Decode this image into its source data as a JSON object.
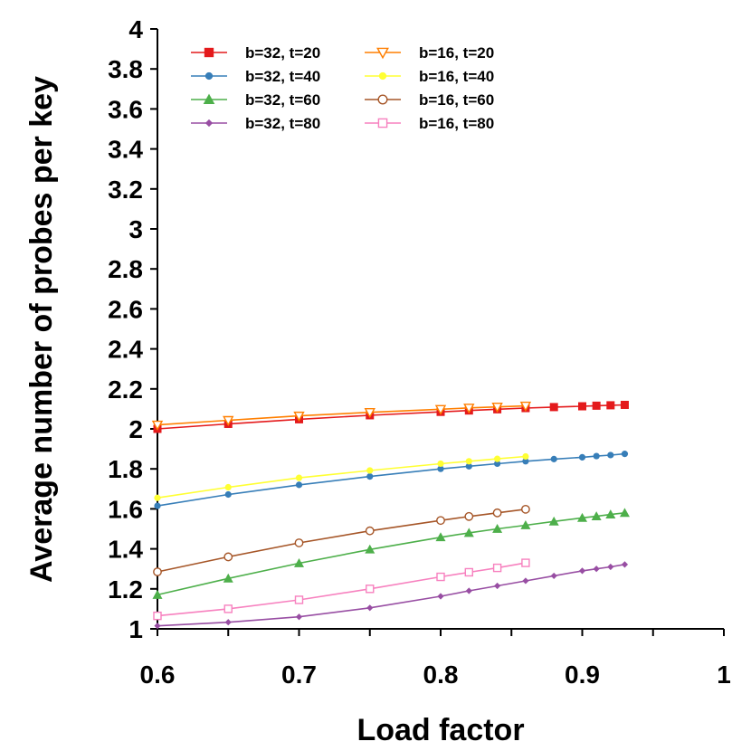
{
  "chart_data": {
    "type": "line",
    "title": "",
    "xlabel": "Load factor",
    "ylabel": "Average number of probes per key",
    "xlim": [
      0.6,
      1.0
    ],
    "ylim": [
      1.0,
      4.0
    ],
    "xticks": [
      "0.6",
      "0.7",
      "0.8",
      "0.9",
      "1"
    ],
    "xtick_values": [
      0.6,
      0.65,
      0.7,
      0.75,
      0.8,
      0.85,
      0.9,
      0.95,
      1.0
    ],
    "yticks": [
      "1",
      "1.2",
      "1.4",
      "1.6",
      "1.8",
      "2",
      "2.2",
      "2.4",
      "2.6",
      "2.8",
      "3",
      "3.2",
      "3.4",
      "3.6",
      "3.8",
      "4"
    ],
    "legend_position": "top-left",
    "series": [
      {
        "name": "b=32, t=20",
        "color": "#e41a1c",
        "marker": "square-filled",
        "x": [
          0.6,
          0.65,
          0.7,
          0.75,
          0.8,
          0.82,
          0.84,
          0.86,
          0.88,
          0.9,
          0.91,
          0.92,
          0.93
        ],
        "y": [
          2.0,
          2.025,
          2.048,
          2.068,
          2.085,
          2.092,
          2.098,
          2.104,
          2.109,
          2.113,
          2.116,
          2.118,
          2.12
        ]
      },
      {
        "name": "b=32, t=40",
        "color": "#377eb8",
        "marker": "circle-filled",
        "x": [
          0.6,
          0.65,
          0.7,
          0.75,
          0.8,
          0.82,
          0.84,
          0.86,
          0.88,
          0.9,
          0.91,
          0.92,
          0.93
        ],
        "y": [
          1.615,
          1.672,
          1.72,
          1.762,
          1.8,
          1.813,
          1.826,
          1.838,
          1.849,
          1.858,
          1.864,
          1.869,
          1.875
        ]
      },
      {
        "name": "b=32, t=60",
        "color": "#4daf4a",
        "marker": "triangle-filled",
        "x": [
          0.6,
          0.65,
          0.7,
          0.75,
          0.8,
          0.82,
          0.84,
          0.86,
          0.88,
          0.9,
          0.91,
          0.92,
          0.93
        ],
        "y": [
          1.17,
          1.252,
          1.328,
          1.397,
          1.458,
          1.48,
          1.5,
          1.518,
          1.537,
          1.555,
          1.563,
          1.572,
          1.58
        ]
      },
      {
        "name": "b=32, t=80",
        "color": "#984ea3",
        "marker": "diamond-filled",
        "x": [
          0.6,
          0.65,
          0.7,
          0.75,
          0.8,
          0.82,
          0.84,
          0.86,
          0.88,
          0.9,
          0.91,
          0.92,
          0.93
        ],
        "y": [
          1.015,
          1.033,
          1.06,
          1.105,
          1.163,
          1.19,
          1.215,
          1.24,
          1.265,
          1.29,
          1.3,
          1.31,
          1.322
        ]
      },
      {
        "name": "b=16, t=20",
        "color": "#ff7f00",
        "marker": "triangle-down-open",
        "x": [
          0.6,
          0.65,
          0.7,
          0.75,
          0.8,
          0.82,
          0.84,
          0.86
        ],
        "y": [
          2.02,
          2.043,
          2.065,
          2.083,
          2.098,
          2.105,
          2.11,
          2.115
        ]
      },
      {
        "name": "b=16, t=40",
        "color": "#ffff33",
        "marker": "circle-filled",
        "x": [
          0.6,
          0.65,
          0.7,
          0.75,
          0.8,
          0.82,
          0.84,
          0.86
        ],
        "y": [
          1.655,
          1.708,
          1.755,
          1.792,
          1.826,
          1.838,
          1.85,
          1.862
        ]
      },
      {
        "name": "b=16, t=60",
        "color": "#a65628",
        "marker": "circle-open",
        "x": [
          0.6,
          0.65,
          0.7,
          0.75,
          0.8,
          0.82,
          0.84,
          0.86
        ],
        "y": [
          1.285,
          1.36,
          1.43,
          1.49,
          1.542,
          1.562,
          1.58,
          1.598
        ]
      },
      {
        "name": "b=16, t=80",
        "color": "#f781bf",
        "marker": "square-open",
        "x": [
          0.6,
          0.65,
          0.7,
          0.75,
          0.8,
          0.82,
          0.84,
          0.86
        ],
        "y": [
          1.065,
          1.1,
          1.145,
          1.2,
          1.26,
          1.283,
          1.305,
          1.33
        ]
      }
    ]
  }
}
